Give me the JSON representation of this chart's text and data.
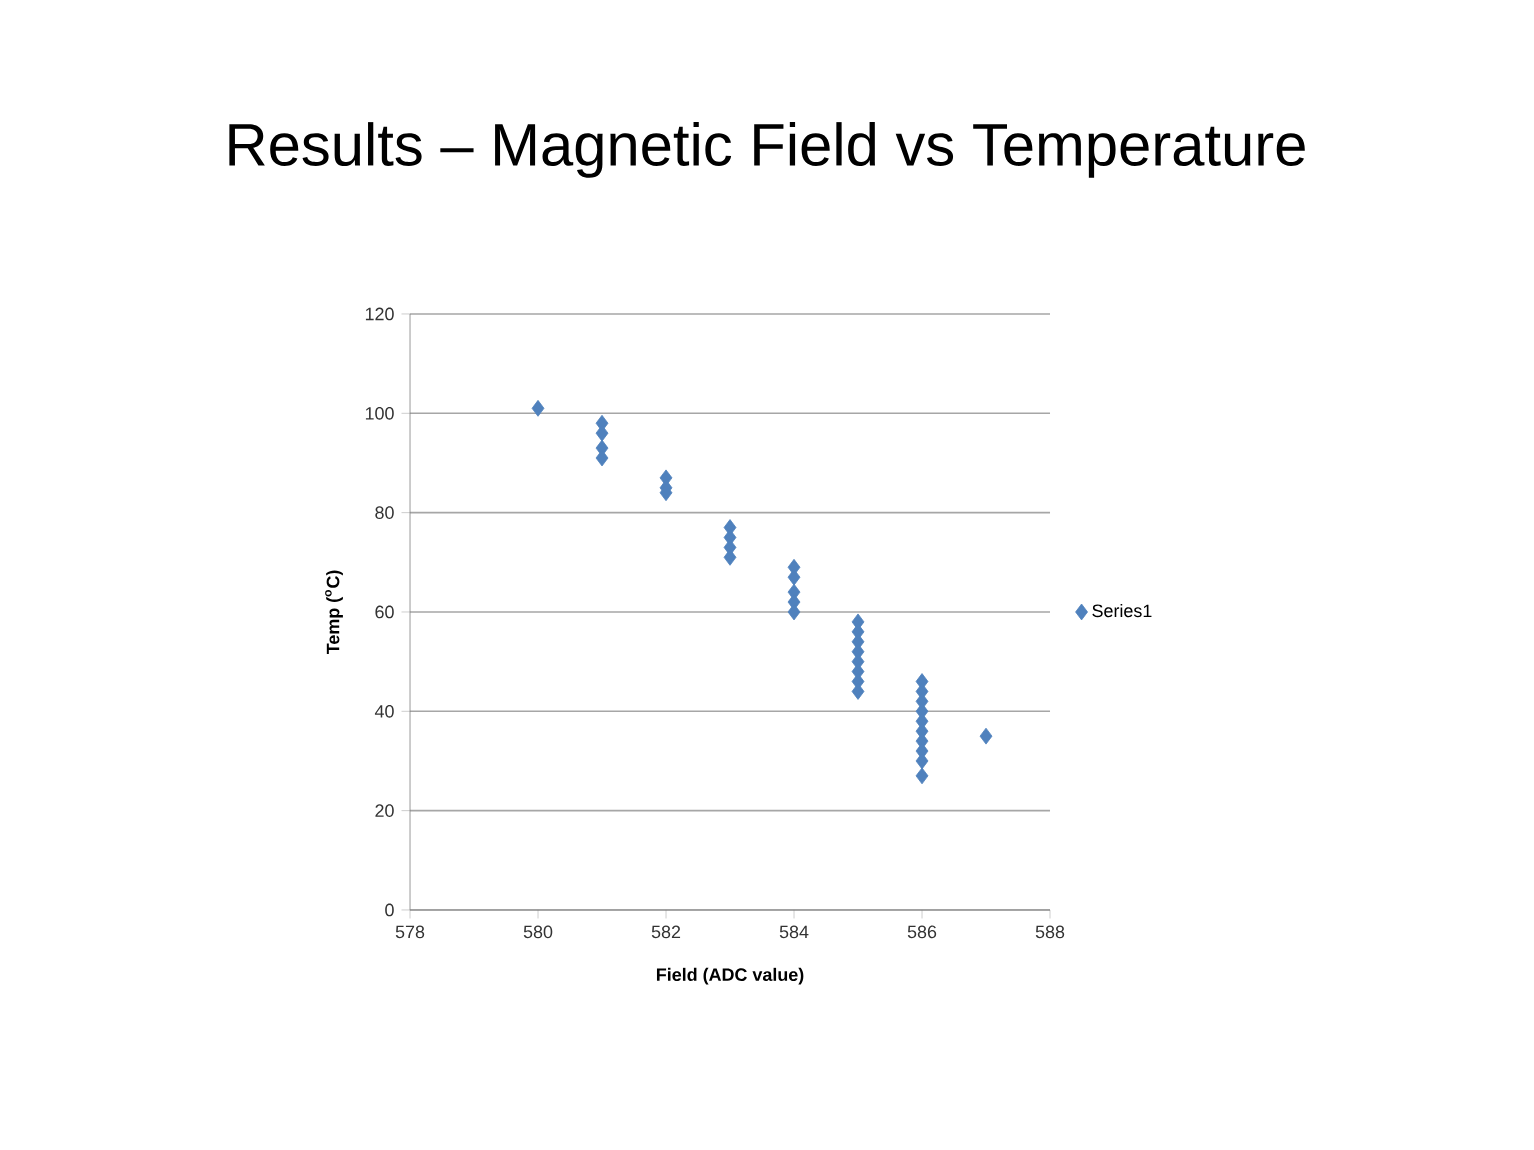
{
  "chart_data": {
    "type": "scatter",
    "title": "Results – Magnetic Field vs Temperature",
    "xlabel": "Field (ADC value)",
    "ylabel": "Temp ($^{o}$C)",
    "x": [
      580,
      581,
      581,
      581,
      581,
      582,
      582,
      582,
      583,
      583,
      583,
      583,
      584,
      584,
      584,
      584,
      584,
      585,
      585,
      585,
      585,
      585,
      585,
      585,
      585,
      586,
      586,
      586,
      586,
      586,
      586,
      586,
      586,
      586,
      586,
      587
    ],
    "series": [
      {
        "name": "Series1",
        "color": "#4f81bd",
        "values": [
          101,
          98,
          96,
          93,
          91,
          87,
          85,
          84,
          77,
          75,
          73,
          71,
          69,
          67,
          64,
          62,
          60,
          58,
          56,
          54,
          52,
          50,
          48,
          46,
          44,
          46,
          44,
          42,
          40,
          38,
          36,
          34,
          32,
          30,
          27,
          35
        ]
      }
    ],
    "xlim": [
      578,
      588
    ],
    "xticks": [
      578,
      580,
      582,
      584,
      586,
      588
    ],
    "ylim": [
      0,
      120
    ],
    "yticks": [
      0,
      20,
      40,
      60,
      80,
      100,
      120
    ],
    "grid": "y",
    "legend": "right",
    "marker": "diamond"
  }
}
